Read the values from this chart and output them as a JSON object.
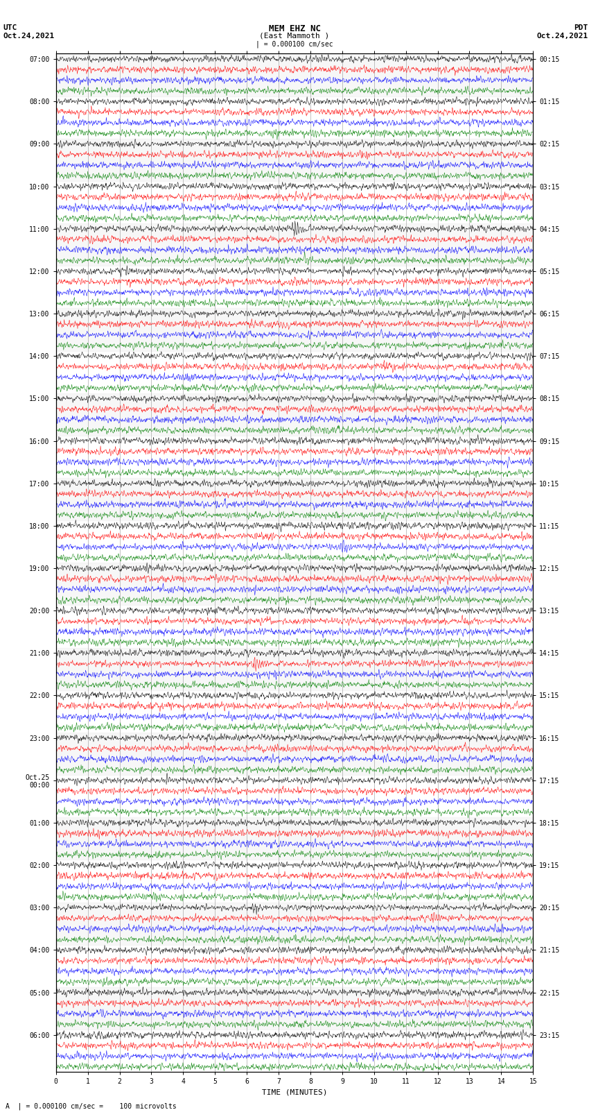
{
  "title_line1": "MEM EHZ NC",
  "title_line2": "(East Mammoth )",
  "title_scale": "| = 0.000100 cm/sec",
  "left_label_line1": "UTC",
  "left_label_line2": "Oct.24,2021",
  "right_label_line1": "PDT",
  "right_label_line2": "Oct.24,2021",
  "bottom_label": "TIME (MINUTES)",
  "bottom_note": "A  | = 0.000100 cm/sec =    100 microvolts",
  "xlabel_ticks": [
    0,
    1,
    2,
    3,
    4,
    5,
    6,
    7,
    8,
    9,
    10,
    11,
    12,
    13,
    14,
    15
  ],
  "utc_times_major": [
    "07:00",
    "08:00",
    "09:00",
    "10:00",
    "11:00",
    "12:00",
    "13:00",
    "14:00",
    "15:00",
    "16:00",
    "17:00",
    "18:00",
    "19:00",
    "20:00",
    "21:00",
    "22:00",
    "23:00",
    "Oct.25\n00:00",
    "01:00",
    "02:00",
    "03:00",
    "04:00",
    "05:00",
    "06:00"
  ],
  "pdt_times_major": [
    "00:15",
    "01:15",
    "02:15",
    "03:15",
    "04:15",
    "05:15",
    "06:15",
    "07:15",
    "08:15",
    "09:15",
    "10:15",
    "11:15",
    "12:15",
    "13:15",
    "14:15",
    "15:15",
    "16:15",
    "17:15",
    "18:15",
    "19:15",
    "20:15",
    "21:15",
    "22:15",
    "23:15"
  ],
  "colors": [
    "black",
    "red",
    "blue",
    "green"
  ],
  "n_hours": 24,
  "traces_per_hour": 4,
  "n_samples": 1500,
  "duration_minutes": 15,
  "amplitude_scale": 0.38,
  "bg_color": "white",
  "grid_color": "#888888",
  "font_size_title": 9,
  "font_size_labels": 8,
  "font_size_ticks": 7,
  "random_seed": 12345
}
